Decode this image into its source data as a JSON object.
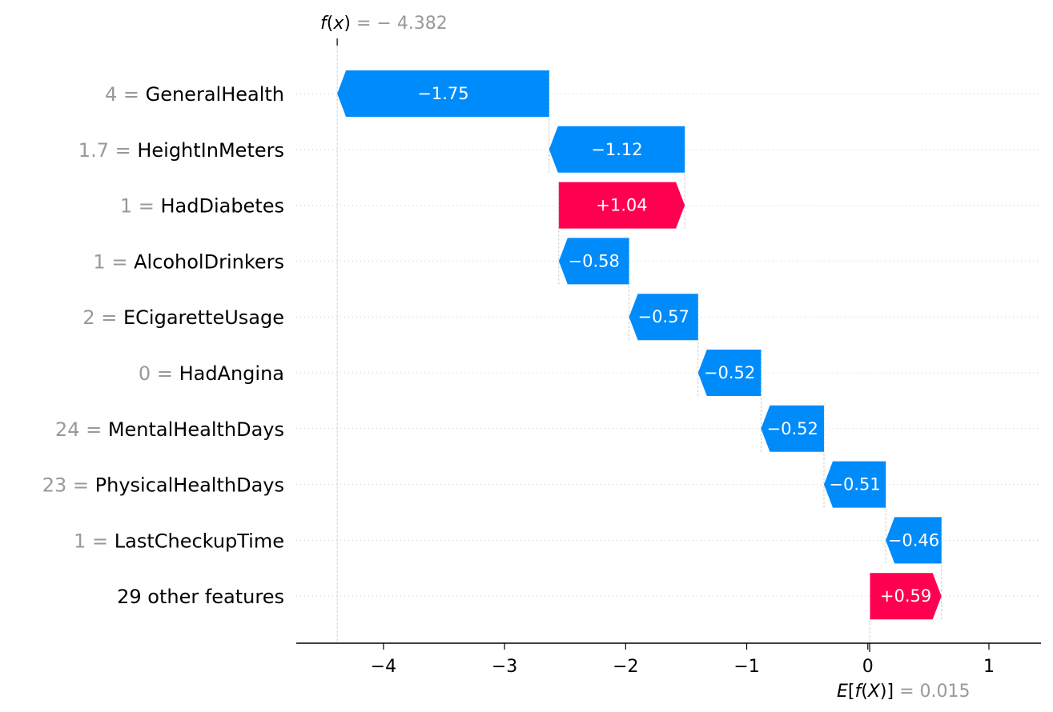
{
  "chart_data": {
    "type": "bar",
    "subtype": "shap-waterfall",
    "fx": {
      "label_prefix": "f",
      "label_arg": "x",
      "label_eq": " = ",
      "value": -4.382,
      "value_text": "− 4.382"
    },
    "efx": {
      "label_prefix": "E",
      "label_mid": "f",
      "label_arg": "X",
      "label_eq": " = ",
      "value": 0.015,
      "value_text": "0.015"
    },
    "features": [
      {
        "value_text": "4",
        "name": "GeneralHealth",
        "contribution": -1.75,
        "label": "−1.75"
      },
      {
        "value_text": "1.7",
        "name": "HeightInMeters",
        "contribution": -1.12,
        "label": "−1.12"
      },
      {
        "value_text": "1",
        "name": "HadDiabetes",
        "contribution": 1.04,
        "label": "+1.04"
      },
      {
        "value_text": "1",
        "name": "AlcoholDrinkers",
        "contribution": -0.58,
        "label": "−0.58"
      },
      {
        "value_text": "2",
        "name": "ECigaretteUsage",
        "contribution": -0.57,
        "label": "−0.57"
      },
      {
        "value_text": "0",
        "name": "HadAngina",
        "contribution": -0.52,
        "label": "−0.52"
      },
      {
        "value_text": "24",
        "name": "MentalHealthDays",
        "contribution": -0.52,
        "label": "−0.52"
      },
      {
        "value_text": "23",
        "name": "PhysicalHealthDays",
        "contribution": -0.51,
        "label": "−0.51"
      },
      {
        "value_text": "1",
        "name": "LastCheckupTime",
        "contribution": -0.46,
        "label": "−0.46"
      },
      {
        "value_text": "",
        "name": "29 other features",
        "contribution": 0.59,
        "label": "+0.59"
      }
    ],
    "xlim": [
      -4.72,
      1.43
    ],
    "xticks": [
      {
        "value": -4,
        "label": "−4"
      },
      {
        "value": -3,
        "label": "−3"
      },
      {
        "value": -2,
        "label": "−2"
      },
      {
        "value": -1,
        "label": "−1"
      },
      {
        "value": 0,
        "label": "0"
      },
      {
        "value": 1,
        "label": "1"
      }
    ],
    "colors": {
      "negative": "#008bfb",
      "positive": "#ff0051",
      "muted": "#999999",
      "grid": "#cccccc"
    }
  }
}
